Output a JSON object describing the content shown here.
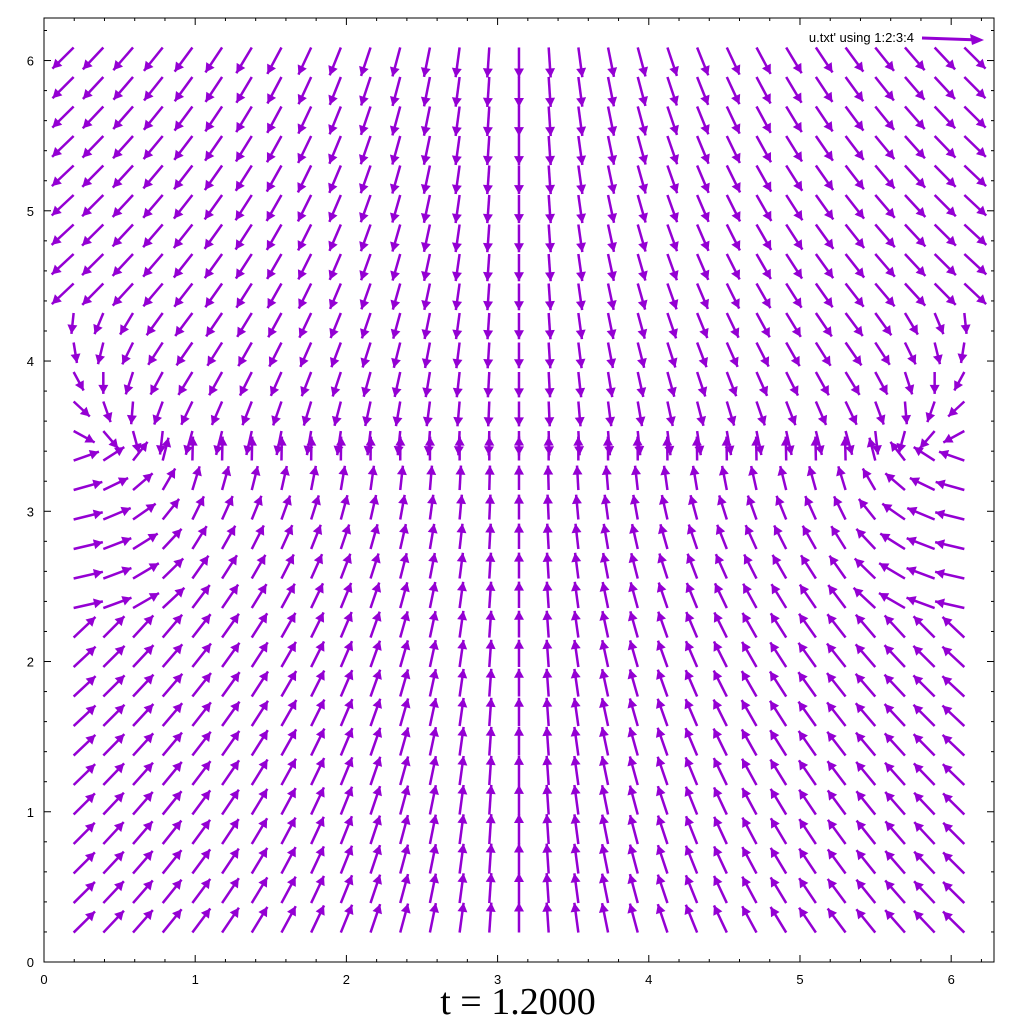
{
  "chart_data": {
    "type": "vector-field",
    "title": "t = 1.2000",
    "xlim": [
      0,
      6.2832
    ],
    "ylim": [
      0,
      6.2832
    ],
    "x_ticks": [
      0,
      1,
      2,
      3,
      4,
      5,
      6
    ],
    "y_ticks": [
      0,
      1,
      2,
      3,
      4,
      5,
      6
    ],
    "x_tick_labels": [
      "0",
      "1",
      "2",
      "3",
      "4",
      "5",
      "6"
    ],
    "y_tick_labels": [
      "0",
      "1",
      "2",
      "3",
      "4",
      "5",
      "6"
    ],
    "grid": false,
    "legend": {
      "position": "top-right",
      "entries": [
        "u.txt' using 1:2:3:4"
      ]
    },
    "series": [
      {
        "name": "u.txt' using 1:2:3:4",
        "color": "#9400d3",
        "grid_x_range": [
          0.196,
          6.087
        ],
        "grid_y_range": [
          0.196,
          6.087
        ],
        "grid_n": 31,
        "field": "converging towards y = 3.35 (upward below, downward above), swirling near x = 0.3 and x = 6.0, approx. vertical along x = 3.14"
      }
    ]
  }
}
